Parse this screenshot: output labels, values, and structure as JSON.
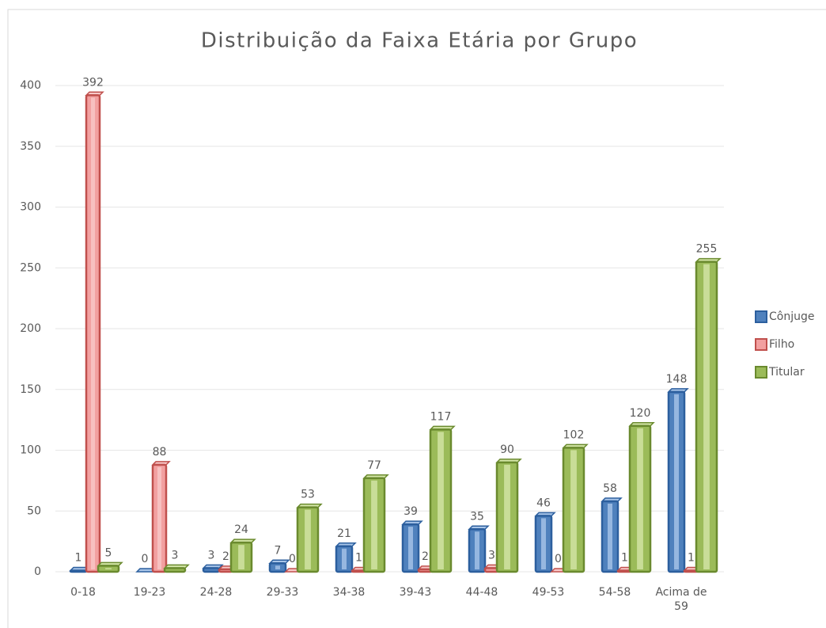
{
  "chart_data": {
    "type": "bar",
    "title": "Distribuição da Faixa Etária por Grupo",
    "categories": [
      "0-18",
      "19-23",
      "24-28",
      "29-33",
      "34-38",
      "39-43",
      "44-48",
      "49-53",
      "54-58",
      "Acima de 59"
    ],
    "series": [
      {
        "name": "Cônjuge",
        "color": "#4f81bd",
        "values": [
          1,
          0,
          3,
          7,
          21,
          39,
          35,
          46,
          58,
          148
        ]
      },
      {
        "name": "Filho",
        "color": "#f2a0a0",
        "values": [
          392,
          88,
          2,
          0,
          1,
          2,
          3,
          0,
          1,
          1
        ]
      },
      {
        "name": "Titular",
        "color": "#9bbb59",
        "values": [
          5,
          3,
          24,
          53,
          77,
          117,
          90,
          102,
          120,
          255
        ]
      }
    ],
    "ylim": [
      0,
      400
    ],
    "yticks": [
      0,
      50,
      100,
      150,
      200,
      250,
      300,
      350,
      400
    ],
    "grid": true,
    "legend": "right"
  }
}
